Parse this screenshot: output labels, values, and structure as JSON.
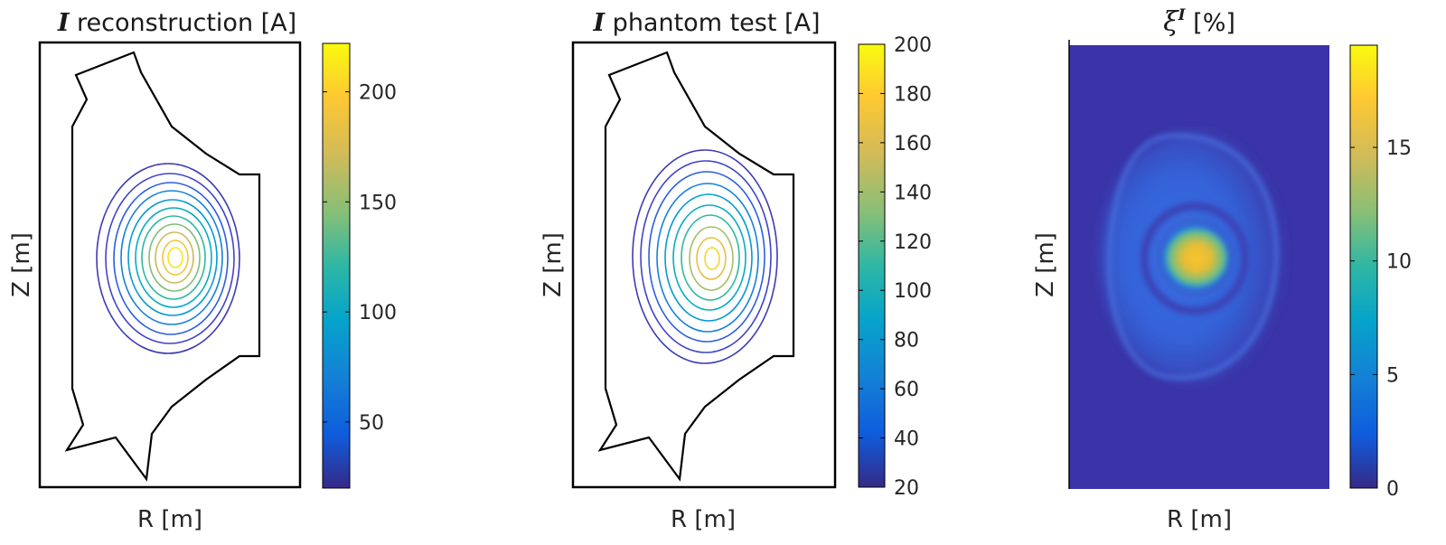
{
  "chart_data": [
    {
      "type": "contour",
      "title": {
        "symbol": "I",
        "text": " reconstruction [A]"
      },
      "xlabel": "R [m]",
      "ylabel": "Z [m]",
      "colorbar": {
        "range": [
          20,
          222
        ],
        "ticks": [
          50,
          100,
          150,
          200
        ]
      },
      "contour_levels": [
        30,
        50,
        70,
        90,
        110,
        130,
        150,
        170,
        190,
        205,
        215
      ],
      "peak_value": 222,
      "grid": false
    },
    {
      "type": "contour",
      "title": {
        "symbol": "I",
        "text": " phantom test [A]"
      },
      "xlabel": "R [m]",
      "ylabel": "Z [m]",
      "colorbar": {
        "range": [
          20,
          200
        ],
        "ticks": [
          20,
          40,
          60,
          80,
          100,
          120,
          140,
          160,
          180,
          200
        ]
      },
      "contour_levels": [
        30,
        50,
        70,
        90,
        110,
        130,
        150,
        170,
        185,
        195
      ],
      "peak_value": 200,
      "grid": false
    },
    {
      "type": "heatmap",
      "title": {
        "symbol": "ξ",
        "superscript": "I",
        "text": " [%]"
      },
      "xlabel": "",
      "ylabel": "Z [m]",
      "colorbar": {
        "range": [
          0,
          19.5
        ],
        "ticks": [
          0,
          5,
          10,
          15
        ]
      },
      "peak_value": 19,
      "grid": false
    }
  ],
  "shared_xlabel": "R [m]",
  "colors": {
    "colormap": "parula",
    "vessel_outline": "#000000",
    "frame": "#000000"
  }
}
